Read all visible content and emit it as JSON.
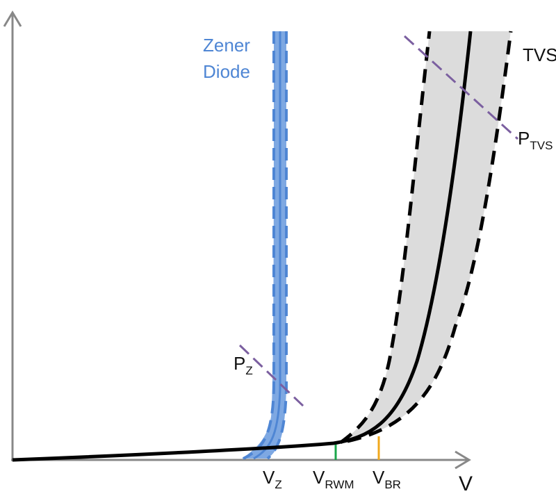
{
  "zener_label": [
    "Zener",
    "Diode"
  ],
  "tvs_label": "TVS",
  "p_tvs": {
    "main": "P",
    "sub": "TVS"
  },
  "p_z": {
    "main": "P",
    "sub": "Z"
  },
  "v_z": {
    "main": "V",
    "sub": "Z"
  },
  "v_rwm": {
    "main": "V",
    "sub": "RWM"
  },
  "v_br": {
    "main": "V",
    "sub": "BR"
  },
  "x_axis_label": "V"
}
